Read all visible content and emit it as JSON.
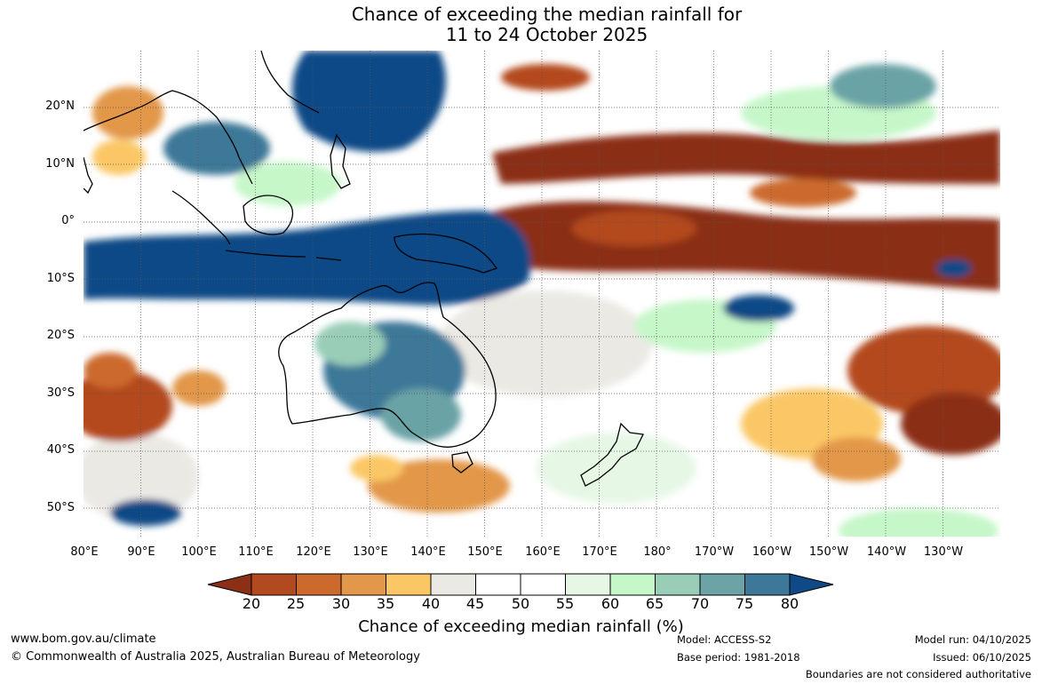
{
  "title": {
    "line1": "Chance of exceeding the median rainfall for",
    "line2": "11 to 24 October 2025"
  },
  "map": {
    "region": "Australia, Maritime Continent and Pacific Ocean",
    "lat_labels": [
      "20°N",
      "10°N",
      "0°",
      "10°S",
      "20°S",
      "30°S",
      "40°S",
      "50°S"
    ],
    "lon_labels": [
      "80°E",
      "90°E",
      "100°E",
      "110°E",
      "120°E",
      "130°E",
      "140°E",
      "150°E",
      "160°E",
      "170°E",
      "180°",
      "170°W",
      "160°W",
      "150°W",
      "140°W",
      "130°W"
    ]
  },
  "colorbar": {
    "ticks": [
      "20",
      "25",
      "30",
      "35",
      "40",
      "45",
      "50",
      "55",
      "60",
      "65",
      "70",
      "75",
      "80"
    ],
    "colors": [
      "#8b2f17",
      "#b3491e",
      "#cc6a2e",
      "#e2974a",
      "#fbc766",
      "#ebe9e4",
      "#ffffff",
      "#ffffff",
      "#e6f7e6",
      "#c6f7c9",
      "#99cdb7",
      "#6ba3a6",
      "#3e7898",
      "#0f4a86"
    ],
    "label": "Chance of exceeding median rainfall (%)"
  },
  "footer": {
    "website": "www.bom.gov.au/climate",
    "copyright": "© Commonwealth of Australia 2025, Australian Bureau of Meteorology",
    "model": "Model: ACCESS-S2",
    "base_period": "Base period: 1981-2018",
    "model_run": "Model run: 04/10/2025",
    "issued": "Issued: 06/10/2025",
    "disclaimer": "Boundaries are not considered authoritative"
  }
}
